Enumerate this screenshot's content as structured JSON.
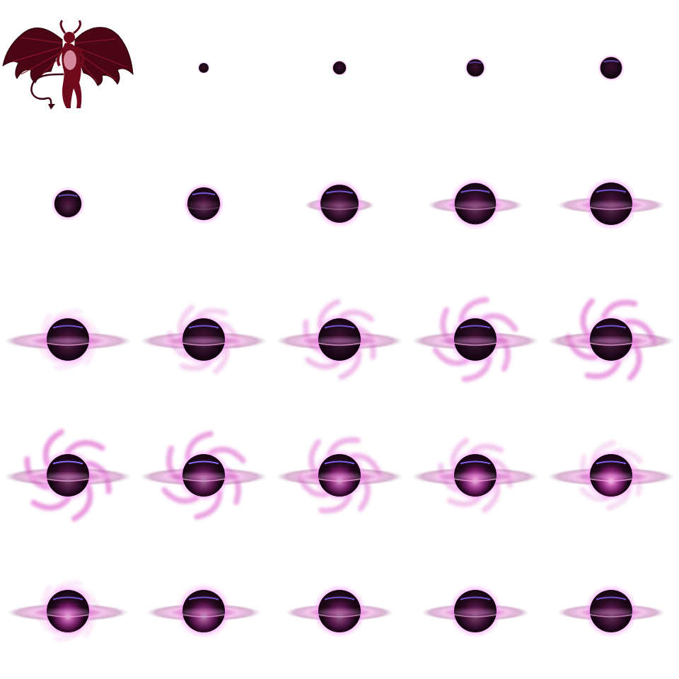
{
  "sprite_sheet": {
    "background_color": "#ffffff",
    "columns": 5,
    "rows": 5,
    "frame_count": 25,
    "colors": {
      "core": "#160612",
      "core_highlight": "#3a1030",
      "glow": "#ff66ff",
      "ring": "#b04a9c",
      "ring_light": "#f2a4e6",
      "swirl": "#e27ad4",
      "band": "#8a6cff",
      "demon_body": "#6e0a1c",
      "demon_wing": "#4a0614",
      "demon_skin": "#e8a0b4"
    },
    "frames": [
      {
        "index": 0,
        "name": "demon-portrait",
        "kind": "character"
      },
      {
        "index": 1,
        "orb": 0.18,
        "band": 0.0,
        "ring": 0.0,
        "swirl": 0.0,
        "inner": 0.0
      },
      {
        "index": 2,
        "orb": 0.24,
        "band": 0.0,
        "ring": 0.0,
        "swirl": 0.0,
        "inner": 0.0
      },
      {
        "index": 3,
        "orb": 0.32,
        "band": 0.5,
        "ring": 0.0,
        "swirl": 0.0,
        "inner": 0.0
      },
      {
        "index": 4,
        "orb": 0.4,
        "band": 0.6,
        "ring": 0.0,
        "swirl": 0.0,
        "inner": 0.0
      },
      {
        "index": 5,
        "orb": 0.5,
        "band": 0.7,
        "ring": 0.0,
        "swirl": 0.0,
        "inner": 0.15
      },
      {
        "index": 6,
        "orb": 0.6,
        "band": 0.8,
        "ring": 0.3,
        "swirl": 0.0,
        "inner": 0.2
      },
      {
        "index": 7,
        "orb": 0.7,
        "band": 0.8,
        "ring": 0.55,
        "swirl": 0.0,
        "inner": 0.25
      },
      {
        "index": 8,
        "orb": 0.76,
        "band": 0.8,
        "ring": 0.75,
        "swirl": 0.0,
        "inner": 0.25
      },
      {
        "index": 9,
        "orb": 0.78,
        "band": 0.8,
        "ring": 0.85,
        "swirl": 0.0,
        "inner": 0.2
      },
      {
        "index": 10,
        "orb": 0.78,
        "band": 0.8,
        "ring": 1.0,
        "swirl": 0.2,
        "inner": 0.15
      },
      {
        "index": 11,
        "orb": 0.78,
        "band": 0.8,
        "ring": 1.0,
        "swirl": 0.45,
        "inner": 0.1
      },
      {
        "index": 12,
        "orb": 0.78,
        "band": 0.8,
        "ring": 1.0,
        "swirl": 0.65,
        "inner": 0.05
      },
      {
        "index": 13,
        "orb": 0.78,
        "band": 0.8,
        "ring": 1.0,
        "swirl": 0.85,
        "inner": 0.05
      },
      {
        "index": 14,
        "orb": 0.78,
        "band": 0.8,
        "ring": 1.0,
        "swirl": 0.95,
        "inner": 0.1
      },
      {
        "index": 15,
        "orb": 0.78,
        "band": 1.0,
        "ring": 1.0,
        "swirl": 1.0,
        "inner": 0.35
      },
      {
        "index": 16,
        "orb": 0.78,
        "band": 1.0,
        "ring": 1.0,
        "swirl": 0.9,
        "inner": 0.6
      },
      {
        "index": 17,
        "orb": 0.78,
        "band": 0.9,
        "ring": 1.0,
        "swirl": 0.75,
        "inner": 0.85
      },
      {
        "index": 18,
        "orb": 0.78,
        "band": 0.9,
        "ring": 1.0,
        "swirl": 0.55,
        "inner": 0.95
      },
      {
        "index": 19,
        "orb": 0.78,
        "band": 0.9,
        "ring": 1.0,
        "swirl": 0.35,
        "inner": 1.0
      },
      {
        "index": 20,
        "orb": 0.78,
        "band": 0.8,
        "ring": 0.95,
        "swirl": 0.2,
        "inner": 0.9
      },
      {
        "index": 21,
        "orb": 0.78,
        "band": 0.8,
        "ring": 0.9,
        "swirl": 0.05,
        "inner": 0.7
      },
      {
        "index": 22,
        "orb": 0.78,
        "band": 0.8,
        "ring": 0.85,
        "swirl": 0.0,
        "inner": 0.5
      },
      {
        "index": 23,
        "orb": 0.78,
        "band": 0.8,
        "ring": 0.85,
        "swirl": 0.0,
        "inner": 0.35
      },
      {
        "index": 24,
        "orb": 0.78,
        "band": 0.8,
        "ring": 0.85,
        "swirl": 0.0,
        "inner": 0.25
      }
    ]
  }
}
